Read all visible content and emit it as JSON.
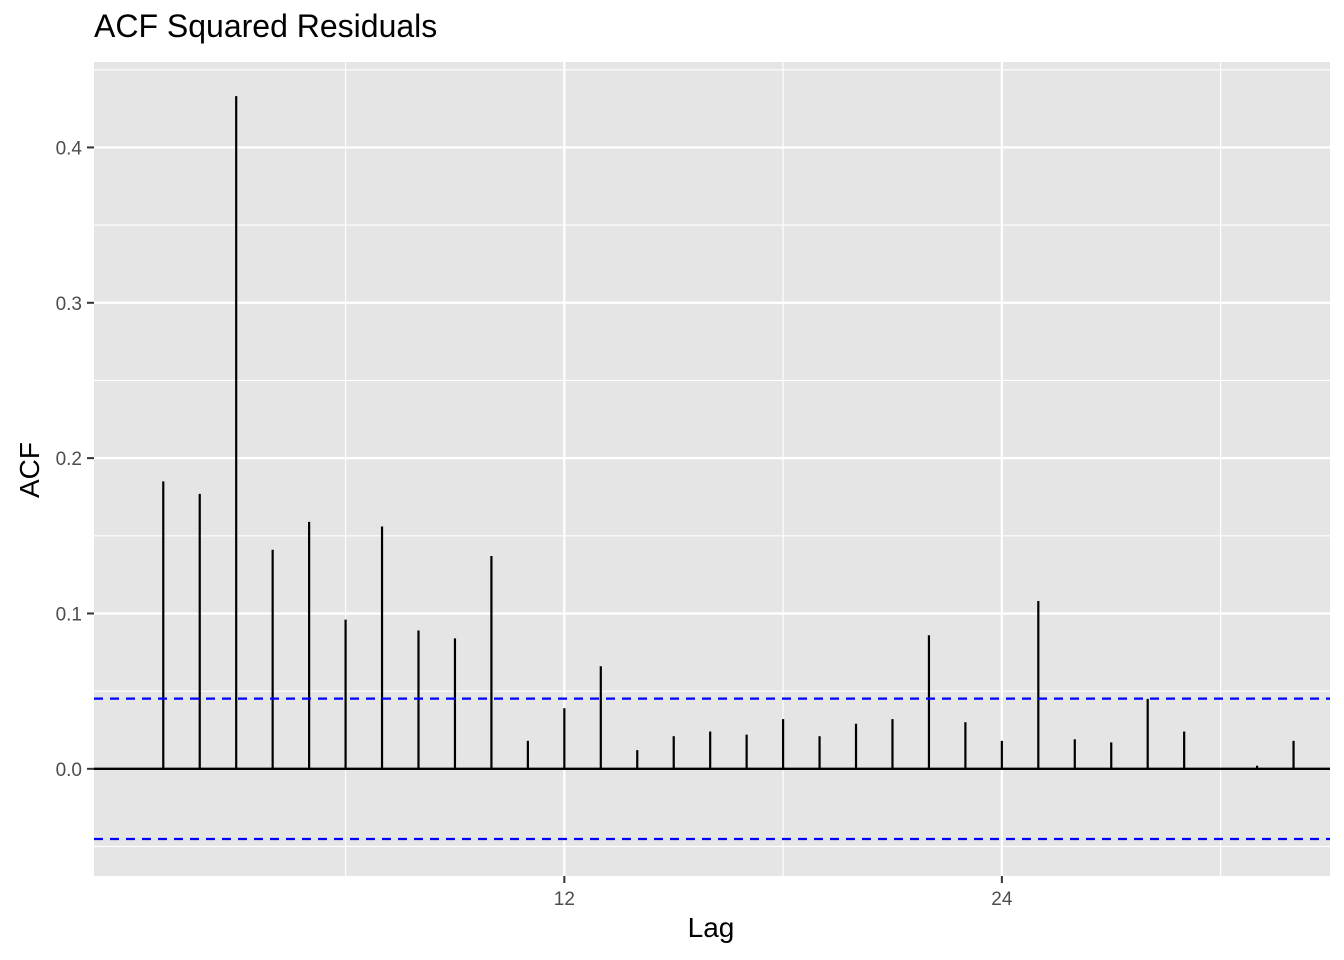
{
  "chart_data": {
    "type": "bar",
    "title": "ACF Squared Residuals",
    "xlabel": "Lag",
    "ylabel": "ACF",
    "x_ticks": [
      12,
      24
    ],
    "y_ticks": [
      0.0,
      0.1,
      0.2,
      0.3,
      0.4
    ],
    "y_tick_labels": [
      "0.0",
      "0.1",
      "0.2",
      "0.3",
      "0.4"
    ],
    "xlim": [
      -0.9,
      33.0
    ],
    "ylim": [
      -0.069,
      0.455
    ],
    "lags": [
      1,
      2,
      3,
      4,
      5,
      6,
      7,
      8,
      9,
      10,
      11,
      12,
      13,
      14,
      15,
      16,
      17,
      18,
      19,
      20,
      21,
      22,
      23,
      24,
      25,
      26,
      27,
      28,
      29,
      30,
      31,
      32
    ],
    "values": [
      0.185,
      0.177,
      0.433,
      0.141,
      0.159,
      0.096,
      0.156,
      0.089,
      0.084,
      0.137,
      0.018,
      0.039,
      0.066,
      0.012,
      0.021,
      0.024,
      0.022,
      0.032,
      0.021,
      0.029,
      0.032,
      0.086,
      0.03,
      0.018,
      0.108,
      0.019,
      0.017,
      0.045,
      0.024,
      0.0,
      0.002,
      0.018
    ],
    "confidence_bound": 0.0452,
    "grid": true,
    "colors": {
      "panel_background": "#e5e5e5",
      "grid": "#ffffff",
      "bars": "#000000",
      "confidence_lines": "#0000ff",
      "tick_text": "#4d4d4d"
    }
  }
}
